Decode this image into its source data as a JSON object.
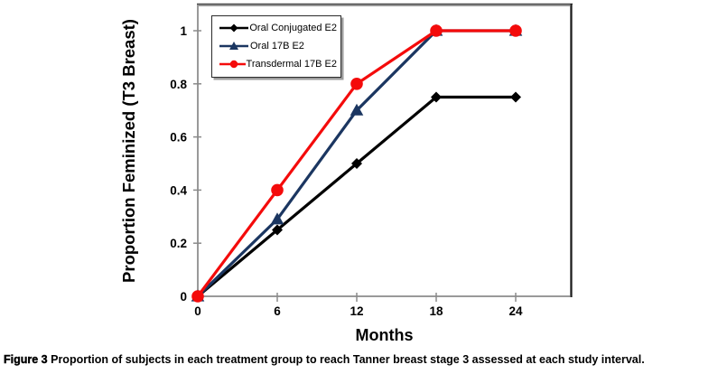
{
  "caption": {
    "label": "Figure 3",
    "text": "Proportion of subjects in each treatment group to reach Tanner breast stage 3 assessed at each study interval."
  },
  "chart_data": {
    "type": "line",
    "title": "",
    "xlabel": "Months",
    "ylabel": "Proportion Feminized (T3 Breast)",
    "x": [
      0,
      6,
      12,
      18,
      24
    ],
    "x_ticks": [
      0,
      6,
      12,
      18,
      24
    ],
    "x_tick_labels": [
      "0",
      "6",
      "12",
      "18",
      "24"
    ],
    "y_ticks": [
      0,
      0.2,
      0.4,
      0.6,
      0.8,
      1
    ],
    "y_tick_labels": [
      "0",
      "0.2",
      "0.4",
      "0.6",
      "0.8",
      "1"
    ],
    "xlim": [
      0,
      28.2
    ],
    "ylim": [
      0,
      1.1
    ],
    "grid": false,
    "legend_position": "top-left-inside",
    "series": [
      {
        "name": "Oral Conjugated E2",
        "color": "#000000",
        "marker": "diamond",
        "values": [
          0,
          0.25,
          0.5,
          0.75,
          0.75
        ]
      },
      {
        "name": "Oral 17B E2",
        "color": "#1B3661",
        "marker": "triangle",
        "values": [
          0,
          0.29,
          0.7,
          1,
          1
        ]
      },
      {
        "name": "Transdermal 17B E2",
        "color": "#F40B0B",
        "marker": "circle",
        "values": [
          0,
          0.4,
          0.8,
          1,
          1
        ]
      }
    ]
  }
}
